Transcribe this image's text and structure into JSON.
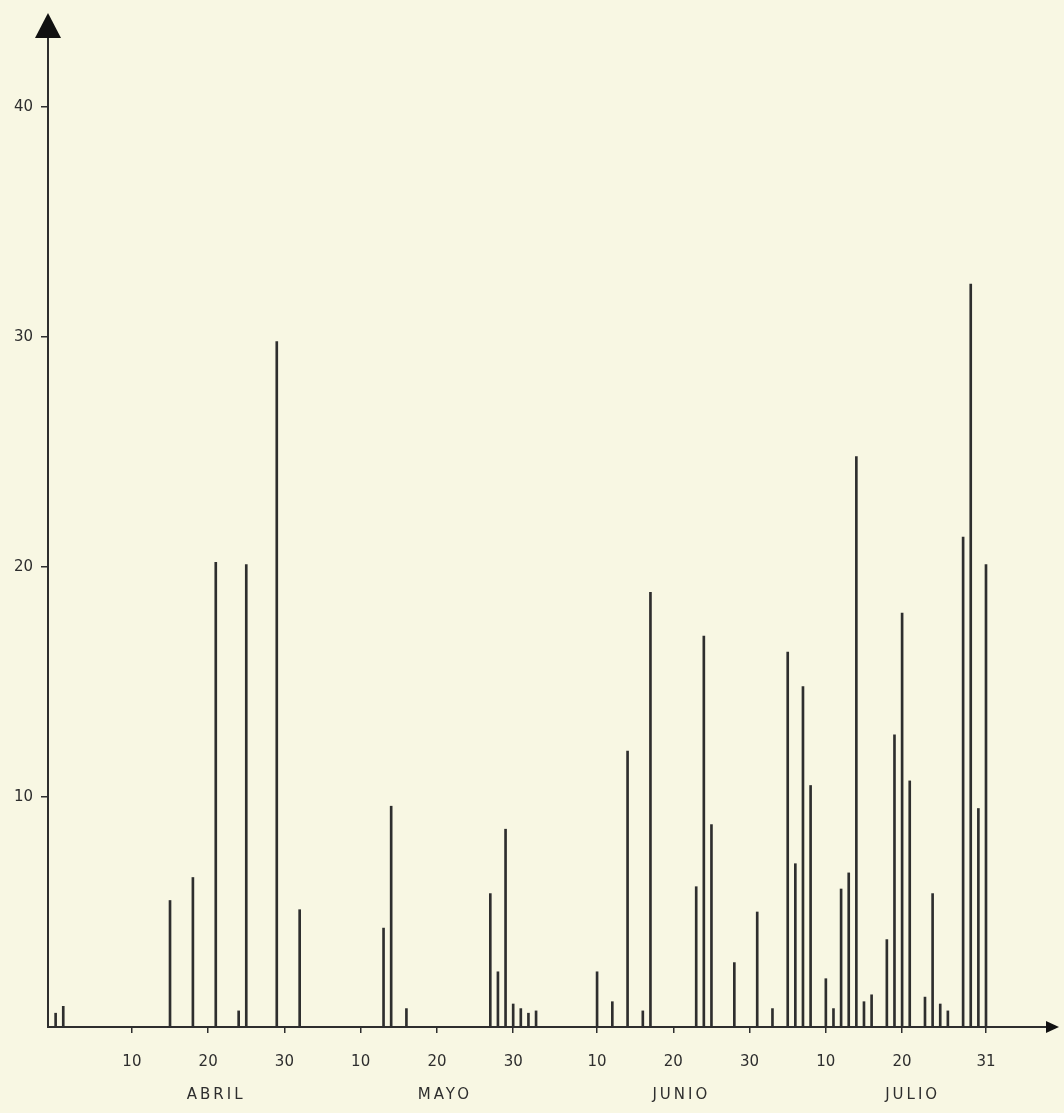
{
  "chart_data": {
    "type": "bar",
    "x": [
      "--03-31",
      "--04-01",
      "--04-15",
      "--04-18",
      "--04-21",
      "--04-24",
      "--04-25",
      "--04-29",
      "--05-02",
      "--05-13",
      "--05-14",
      "--05-16",
      "--05-27",
      "--05-28",
      "--05-29",
      "--05-30",
      "--05-31",
      "--06-01",
      "--06-02",
      "--06-10",
      "--06-12",
      "--06-14",
      "--06-16",
      "--06-17",
      "--06-23",
      "--06-24",
      "--06-25",
      "--06-28",
      "--07-01",
      "--07-03",
      "--07-05",
      "--07-06",
      "--07-07",
      "--07-08",
      "--07-10",
      "--07-11",
      "--07-12",
      "--07-13",
      "--07-14",
      "--07-15",
      "--07-16",
      "--07-18",
      "--07-19",
      "--07-20",
      "--07-21",
      "--07-23",
      "--07-24",
      "--07-25",
      "--07-26",
      "--07-28",
      "--07-29",
      "--07-30",
      "--07-31"
    ],
    "values": [
      0.6,
      0.9,
      5.5,
      6.5,
      20.2,
      0.7,
      20.1,
      29.8,
      5.1,
      4.3,
      9.6,
      0.8,
      5.8,
      2.4,
      8.6,
      1.0,
      0.8,
      0.6,
      0.7,
      2.4,
      1.1,
      12.0,
      0.7,
      18.9,
      6.1,
      17.0,
      8.8,
      2.8,
      5.0,
      0.8,
      16.3,
      7.1,
      14.8,
      10.5,
      2.1,
      0.8,
      6.0,
      6.7,
      24.8,
      1.1,
      1.4,
      3.8,
      12.7,
      18.0,
      10.7,
      1.3,
      5.8,
      1.0,
      0.7,
      21.3,
      32.3,
      9.5,
      20.1
    ],
    "color": "#2e2e2e",
    "xlim": [
      "--03-30",
      "--08-08"
    ],
    "xticks": [
      {
        "value": "--04-10",
        "label": "10"
      },
      {
        "value": "--04-20",
        "label": "20"
      },
      {
        "value": "--04-30",
        "label": "30"
      },
      {
        "value": "--05-10",
        "label": "10"
      },
      {
        "value": "--05-20",
        "label": "20"
      },
      {
        "value": "--05-30",
        "label": "30"
      },
      {
        "value": "--06-10",
        "label": "10"
      },
      {
        "value": "--06-20",
        "label": "20"
      },
      {
        "value": "--06-30",
        "label": "30"
      },
      {
        "value": "--07-10",
        "label": "10"
      },
      {
        "value": "--07-20",
        "label": "20"
      },
      {
        "value": "--07-31",
        "label": "31"
      }
    ],
    "ylim": [
      0,
      43
    ],
    "yticks": [
      10,
      20,
      30,
      40
    ],
    "annotations": [
      "ABRIL",
      "MAYO",
      "JUNIO",
      "JULIO"
    ],
    "grid": false,
    "legend": false
  }
}
